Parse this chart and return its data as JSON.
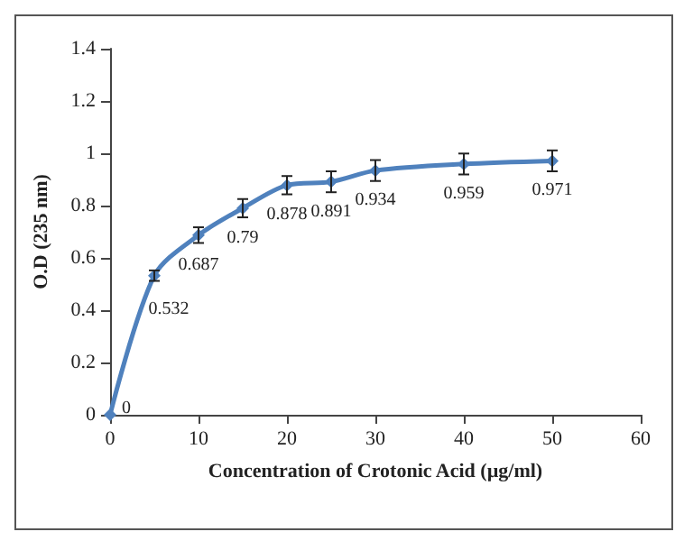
{
  "chart_data": {
    "type": "line",
    "xlabel": "Concentration of Crotonic Acid (µg/ml)",
    "ylabel": "O.D (235 nm)",
    "x": [
      0,
      5,
      10,
      15,
      20,
      25,
      30,
      40,
      50
    ],
    "series": [
      {
        "color": "#4f81bd",
        "values": [
          0,
          0.532,
          0.687,
          0.79,
          0.878,
          0.891,
          0.934,
          0.959,
          0.971
        ],
        "errors": [
          null,
          0.02,
          0.03,
          0.035,
          0.035,
          0.04,
          0.04,
          0.04,
          0.04
        ]
      }
    ],
    "xlim": [
      0,
      60
    ],
    "xticks": [
      0,
      10,
      20,
      30,
      40,
      50,
      60
    ],
    "ylim": [
      0,
      1.4
    ],
    "yticks": [
      0,
      0.2,
      0.4,
      0.6,
      0.8,
      1,
      1.2,
      1.4
    ],
    "data_labels": true,
    "marker": "diamond",
    "line_style": "solid"
  }
}
